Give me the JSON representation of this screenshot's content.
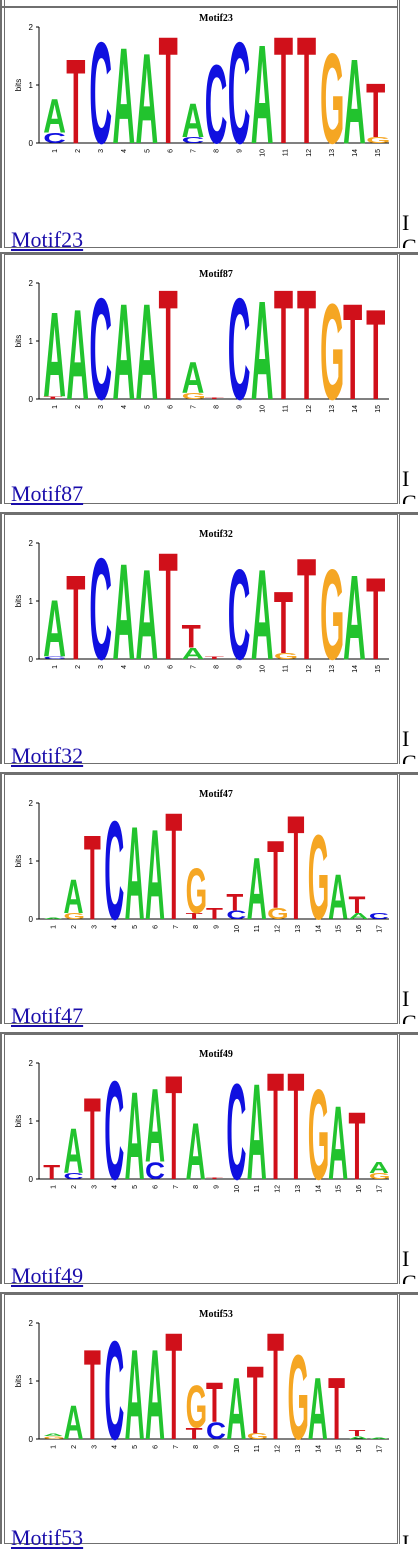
{
  "motifs": [
    {
      "name": "Motif23",
      "link_text": "Motif23",
      "right_clip_top": "I",
      "right_clip_bottom": "C",
      "logo": {
        "title": "Motif23",
        "ylabel": "bits",
        "yticks": [
          "0",
          "1",
          "2"
        ],
        "positions": [
          "1",
          "2",
          "3",
          "4",
          "5",
          "6",
          "7",
          "8",
          "9",
          "10",
          "11",
          "12",
          "13",
          "14",
          "15"
        ],
        "columns": [
          [
            [
              "A",
              0.6
            ],
            [
              "C",
              0.18
            ]
          ],
          [
            [
              "T",
              1.5
            ]
          ],
          [
            [
              "C",
              1.8
            ]
          ],
          [
            [
              "A",
              1.7
            ]
          ],
          [
            [
              "A",
              1.6
            ]
          ],
          [
            [
              "T",
              1.9
            ]
          ],
          [
            [
              "A",
              0.6
            ],
            [
              "C",
              0.1
            ]
          ],
          [
            [
              "C",
              1.4
            ]
          ],
          [
            [
              "C",
              1.8
            ]
          ],
          [
            [
              "A",
              1.75
            ]
          ],
          [
            [
              "T",
              1.9
            ]
          ],
          [
            [
              "T",
              1.9
            ]
          ],
          [
            [
              "G",
              1.6
            ]
          ],
          [
            [
              "A",
              1.5
            ]
          ],
          [
            [
              "T",
              0.95
            ],
            [
              "G",
              0.1
            ]
          ]
        ]
      }
    },
    {
      "name": "Motif87",
      "link_text": "Motif87",
      "right_clip_top": "I",
      "right_clip_bottom": "C",
      "logo": {
        "title": "Motif87",
        "ylabel": "bits",
        "yticks": [
          "0",
          "1",
          "2"
        ],
        "positions": [
          "1",
          "2",
          "3",
          "4",
          "5",
          "6",
          "7",
          "8",
          "9",
          "10",
          "11",
          "12",
          "13",
          "14",
          "15"
        ],
        "columns": [
          [
            [
              "A",
              1.5
            ],
            [
              "T",
              0.05
            ]
          ],
          [
            [
              "A",
              1.6
            ]
          ],
          [
            [
              "C",
              1.8
            ]
          ],
          [
            [
              "A",
              1.7
            ]
          ],
          [
            [
              "A",
              1.7
            ]
          ],
          [
            [
              "T",
              1.95
            ]
          ],
          [
            [
              "A",
              0.55
            ],
            [
              "G",
              0.1
            ]
          ],
          [
            [
              "T",
              0.02
            ]
          ],
          [
            [
              "C",
              1.8
            ]
          ],
          [
            [
              "A",
              1.75
            ]
          ],
          [
            [
              "T",
              1.95
            ]
          ],
          [
            [
              "T",
              1.95
            ]
          ],
          [
            [
              "G",
              1.7
            ]
          ],
          [
            [
              "T",
              1.7
            ]
          ],
          [
            [
              "T",
              1.6
            ]
          ]
        ]
      }
    },
    {
      "name": "Motif32",
      "link_text": "Motif32",
      "right_clip_top": "I",
      "right_clip_bottom": "C",
      "logo": {
        "title": "Motif32",
        "ylabel": "bits",
        "yticks": [
          "0",
          "1",
          "2"
        ],
        "positions": [
          "1",
          "2",
          "3",
          "4",
          "5",
          "6",
          "7",
          "8",
          "9",
          "10",
          "11",
          "12",
          "13",
          "14",
          "15"
        ],
        "columns": [
          [
            [
              "A",
              1.0
            ],
            [
              "C",
              0.05
            ]
          ],
          [
            [
              "T",
              1.5
            ]
          ],
          [
            [
              "C",
              1.8
            ]
          ],
          [
            [
              "A",
              1.7
            ]
          ],
          [
            [
              "A",
              1.6
            ]
          ],
          [
            [
              "T",
              1.9
            ]
          ],
          [
            [
              "T",
              0.4
            ],
            [
              "A",
              0.2
            ]
          ],
          [
            [
              "T",
              0.05
            ]
          ],
          [
            [
              "C",
              1.6
            ]
          ],
          [
            [
              "A",
              1.6
            ]
          ],
          [
            [
              "T",
              1.1
            ],
            [
              "G",
              0.1
            ]
          ],
          [
            [
              "T",
              1.8
            ]
          ],
          [
            [
              "G",
              1.6
            ]
          ],
          [
            [
              "A",
              1.5
            ]
          ],
          [
            [
              "T",
              1.45
            ]
          ]
        ]
      }
    },
    {
      "name": "Motif47",
      "link_text": "Motif47",
      "right_clip_top": "I",
      "right_clip_bottom": "C",
      "logo": {
        "title": "Motif47",
        "ylabel": "bits",
        "yticks": [
          "0",
          "1",
          "2"
        ],
        "positions": [
          "1",
          "2",
          "3",
          "4",
          "5",
          "6",
          "7",
          "8",
          "9",
          "10",
          "11",
          "12",
          "13",
          "14",
          "15",
          "16",
          "17"
        ],
        "columns": [
          [
            [
              "A",
              0.02
            ]
          ],
          [
            [
              "A",
              0.6
            ],
            [
              "G",
              0.1
            ]
          ],
          [
            [
              "T",
              1.5
            ]
          ],
          [
            [
              "C",
              1.75
            ]
          ],
          [
            [
              "A",
              1.65
            ]
          ],
          [
            [
              "A",
              1.6
            ]
          ],
          [
            [
              "T",
              1.9
            ]
          ],
          [
            [
              "G",
              0.8
            ],
            [
              "T",
              0.1
            ]
          ],
          [
            [
              "T",
              0.2
            ]
          ],
          [
            [
              "T",
              0.3
            ],
            [
              "C",
              0.15
            ]
          ],
          [
            [
              "A",
              1.1
            ]
          ],
          [
            [
              "T",
              1.2
            ],
            [
              "G",
              0.2
            ]
          ],
          [
            [
              "T",
              1.85
            ]
          ],
          [
            [
              "G",
              1.5
            ]
          ],
          [
            [
              "A",
              0.8
            ]
          ],
          [
            [
              "T",
              0.3
            ],
            [
              "A",
              0.1
            ]
          ],
          [
            [
              "C",
              0.1
            ]
          ]
        ]
      }
    },
    {
      "name": "Motif49",
      "link_text": "Motif49",
      "right_clip_top": "I",
      "right_clip_bottom": "C",
      "logo": {
        "title": "Motif49",
        "ylabel": "bits",
        "yticks": [
          "0",
          "1",
          "2"
        ],
        "positions": [
          "1",
          "2",
          "3",
          "4",
          "5",
          "6",
          "7",
          "8",
          "9",
          "10",
          "11",
          "12",
          "13",
          "14",
          "15",
          "16",
          "17"
        ],
        "columns": [
          [
            [
              "T",
              0.25
            ]
          ],
          [
            [
              "A",
              0.8
            ],
            [
              "C",
              0.1
            ]
          ],
          [
            [
              "T",
              1.45
            ]
          ],
          [
            [
              "C",
              1.75
            ]
          ],
          [
            [
              "A",
              1.55
            ]
          ],
          [
            [
              "A",
              1.3
            ],
            [
              "C",
              0.3
            ]
          ],
          [
            [
              "T",
              1.85
            ]
          ],
          [
            [
              "A",
              1.0
            ]
          ],
          [
            [
              "T",
              0.02
            ]
          ],
          [
            [
              "C",
              1.7
            ]
          ],
          [
            [
              "A",
              1.7
            ]
          ],
          [
            [
              "T",
              1.9
            ]
          ],
          [
            [
              "T",
              1.9
            ]
          ],
          [
            [
              "G",
              1.6
            ]
          ],
          [
            [
              "A",
              1.3
            ]
          ],
          [
            [
              "T",
              1.2
            ]
          ],
          [
            [
              "A",
              0.2
            ],
            [
              "G",
              0.1
            ]
          ]
        ]
      }
    },
    {
      "name": "Motif53",
      "link_text": "Motif53",
      "right_clip_top": "I",
      "right_clip_bottom": "",
      "logo": {
        "title": "Motif53",
        "ylabel": "bits",
        "yticks": [
          "0",
          "1",
          "2"
        ],
        "positions": [
          "1",
          "2",
          "3",
          "4",
          "5",
          "6",
          "7",
          "8",
          "9",
          "10",
          "11",
          "12",
          "13",
          "14",
          "15",
          "16",
          "17"
        ],
        "columns": [
          [
            [
              "G",
              0.05
            ],
            [
              "A",
              0.05
            ]
          ],
          [
            [
              "A",
              0.6
            ]
          ],
          [
            [
              "T",
              1.6
            ]
          ],
          [
            [
              "C",
              1.75
            ]
          ],
          [
            [
              "A",
              1.6
            ]
          ],
          [
            [
              "A",
              1.6
            ]
          ],
          [
            [
              "T",
              1.9
            ]
          ],
          [
            [
              "G",
              0.75
            ],
            [
              "T",
              0.2
            ]
          ],
          [
            [
              "T",
              0.7
            ],
            [
              "C",
              0.3
            ]
          ],
          [
            [
              "A",
              1.1
            ]
          ],
          [
            [
              "T",
              1.2
            ],
            [
              "G",
              0.1
            ]
          ],
          [
            [
              "T",
              1.9
            ]
          ],
          [
            [
              "G",
              1.5
            ]
          ],
          [
            [
              "A",
              1.1
            ]
          ],
          [
            [
              "T",
              1.1
            ]
          ],
          [
            [
              "T",
              0.1
            ],
            [
              "A",
              0.05
            ]
          ],
          [
            [
              "A",
              0.02
            ]
          ]
        ]
      }
    }
  ],
  "colors": {
    "A": "#22c32e",
    "C": "#1010e0",
    "G": "#f5a623",
    "T": "#d0101a",
    "border": "#6f6f6f",
    "link": "#1a0dab"
  }
}
